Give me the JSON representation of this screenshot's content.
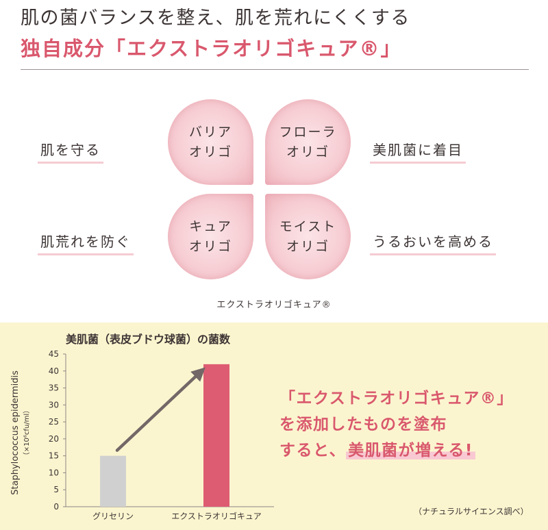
{
  "header": {
    "line1": "肌の菌バランスを整え、肌を荒れにくくする",
    "line2": "独自成分「エクストラオリゴキュア®」"
  },
  "clover": {
    "petals": [
      {
        "line1": "バリア",
        "line2": "オリゴ"
      },
      {
        "line1": "フローラ",
        "line2": "オリゴ"
      },
      {
        "line1": "キュア",
        "line2": "オリゴ"
      },
      {
        "line1": "モイスト",
        "line2": "オリゴ"
      }
    ],
    "effects": [
      "肌を守る",
      "美肌菌に着目",
      "肌荒れを防ぐ",
      "うるおいを高める"
    ],
    "brand_caption": "エクストラオリゴキュア®"
  },
  "chart_data": {
    "type": "bar",
    "title": "美肌菌（表皮ブドウ球菌）の菌数",
    "ylabel": "Staphylococcus epidermidis",
    "ylabel_unit": "（×10⁶cfu/ml）",
    "xlabel": "",
    "categories": [
      "グリセリン",
      "エクストラオリゴキュア"
    ],
    "values": [
      15,
      42
    ],
    "colors": [
      "#d0d0d0",
      "#de5c72"
    ],
    "ylim": [
      0,
      45
    ],
    "yticks": [
      0,
      5,
      10,
      15,
      20,
      25,
      30,
      35,
      40,
      45
    ],
    "grid": false,
    "annotation": "increase-arrow"
  },
  "callout": {
    "line1": "「エクストラオリゴキュア®」",
    "line2": "を添加したものを塗布",
    "line3_pre": "すると、",
    "line3_hl": "美肌菌が増える!"
  },
  "source_note": "（ナチュラルサイエンス調べ）",
  "colors": {
    "accent_pink": "#d9586d",
    "petal_pink": "#f6ccd2",
    "underline_pink": "#f5cbd2",
    "panel_yellow": "#fbf5cf",
    "text_dark": "#3d3434",
    "arrow_gray": "#736767"
  }
}
